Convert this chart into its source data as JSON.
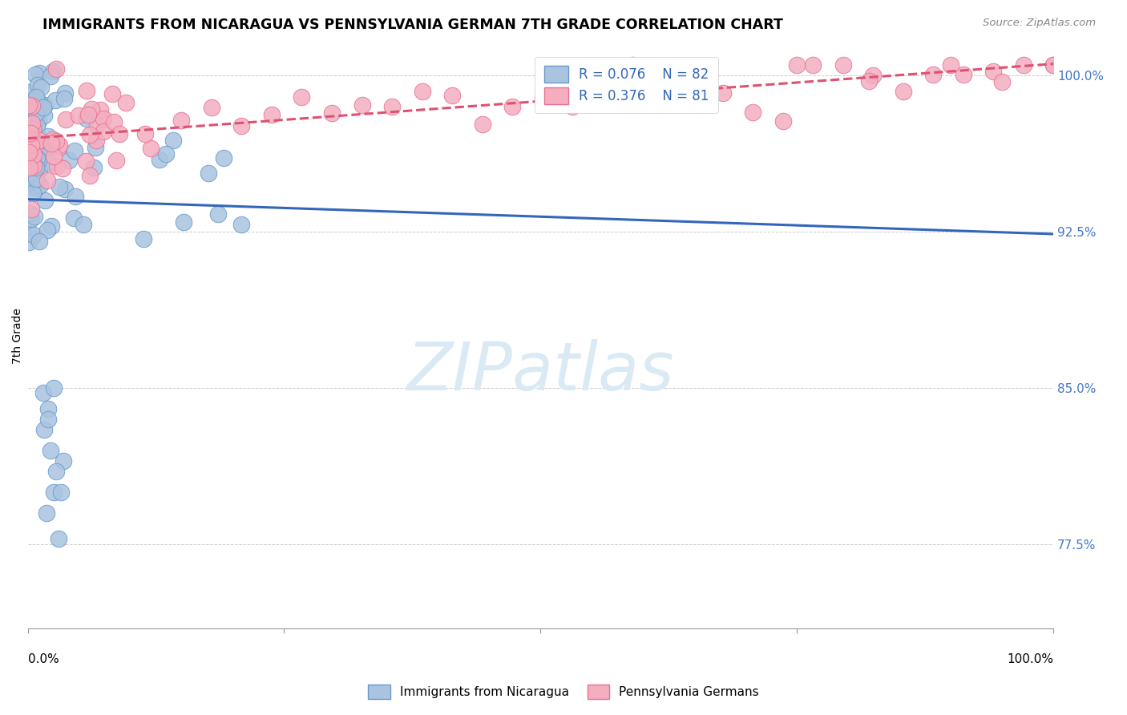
{
  "title": "IMMIGRANTS FROM NICARAGUA VS PENNSYLVANIA GERMAN 7TH GRADE CORRELATION CHART",
  "source": "Source: ZipAtlas.com",
  "ylabel": "7th Grade",
  "series1_color": "#aac4e0",
  "series2_color": "#f4aec0",
  "series1_edge": "#6699cc",
  "series2_edge": "#e87090",
  "trend1_color": "#3366bb",
  "trend2_color": "#e05070",
  "watermark_color": "#daeaf5",
  "xmin": 0.0,
  "xmax": 1.0,
  "ymin": 0.735,
  "ymax": 1.015,
  "right_yticks": [
    0.775,
    0.85,
    0.925,
    1.0
  ],
  "right_ytick_labels": [
    "77.5%",
    "85.0%",
    "92.5%",
    "100.0%"
  ],
  "legend_R1": "R = 0.076",
  "legend_N1": "N = 82",
  "legend_R2": "R = 0.376",
  "legend_N2": "N = 81",
  "legend_label1": "Immigrants from Nicaragua",
  "legend_label2": "Pennsylvania Germans"
}
